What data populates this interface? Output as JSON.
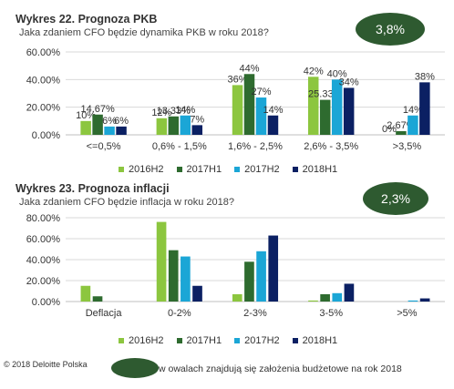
{
  "colors": {
    "2016H2": "#8cc63f",
    "2017H1": "#2e6b2f",
    "2017H2": "#1ba6d6",
    "2018H1": "#0b2063",
    "badge": "#2e5a30"
  },
  "legend": [
    "2016H2",
    "2017H1",
    "2017H2",
    "2018H1"
  ],
  "chart1_text": {
    "title": "Wykres 22. Prognoza PKB",
    "subtitle": "Jaka zdaniem CFO będzie dynamika PKB w roku 2018?",
    "badge": "3,8%"
  },
  "chart2_text": {
    "title": "Wykres 23. Prognoza inflacji",
    "subtitle": "Jaka zdaniem CFO będzie inflacja w roku 2018?",
    "badge": "2,3%"
  },
  "footer": {
    "copyright": "© 2018 Deloitte Polska",
    "note": "w owalach znajdują się założenia budżetowe na rok 2018"
  },
  "chart_data": [
    {
      "type": "bar",
      "title": "Wykres 22. Prognoza PKB",
      "subtitle": "Jaka zdaniem CFO będzie dynamika PKB w roku 2018?",
      "categories": [
        "<=0,5%",
        "0,6% - 1,5%",
        "1,6% - 2,5%",
        "2,6% - 3,5%",
        ">3,5%"
      ],
      "series": [
        {
          "name": "2016H2",
          "values": [
            10,
            12,
            36,
            42,
            0
          ]
        },
        {
          "name": "2017H1",
          "values": [
            14.67,
            13.33,
            44,
            25.33,
            2.67
          ]
        },
        {
          "name": "2017H2",
          "values": [
            6,
            14,
            27,
            40,
            14
          ]
        },
        {
          "name": "2018H1",
          "values": [
            6,
            7,
            14,
            34,
            38
          ]
        }
      ],
      "data_labels": [
        [
          "10%",
          "12%",
          "36%",
          "42%",
          "0%"
        ],
        [
          "14.67%",
          "13.33%",
          "44%",
          "25.33%",
          "2.67%"
        ],
        [
          "6%",
          "14%",
          "27%",
          "40%",
          "14%"
        ],
        [
          "6%",
          "7%",
          "14%",
          "34%",
          "38%"
        ]
      ],
      "yticks": [
        "0.00%",
        "20.00%",
        "40.00%",
        "60.00%"
      ],
      "ylim": [
        0,
        60
      ],
      "grid": true,
      "legend_position": "bottom"
    },
    {
      "type": "bar",
      "title": "Wykres 23. Prognoza inflacji",
      "subtitle": "Jaka zdaniem CFO będzie inflacja w roku 2018?",
      "categories": [
        "Deflacja",
        "0-2%",
        "2-3%",
        "3-5%",
        ">5%"
      ],
      "series": [
        {
          "name": "2016H2",
          "values": [
            15,
            76,
            7,
            1,
            0
          ]
        },
        {
          "name": "2017H1",
          "values": [
            5,
            49,
            38,
            7,
            0
          ]
        },
        {
          "name": "2017H2",
          "values": [
            0,
            43,
            48,
            8,
            1
          ]
        },
        {
          "name": "2018H1",
          "values": [
            0,
            15,
            63,
            17,
            3
          ]
        }
      ],
      "yticks": [
        "0.00%",
        "20.00%",
        "40.00%",
        "60.00%",
        "80.00%"
      ],
      "ylim": [
        0,
        80
      ],
      "grid": true,
      "legend_position": "bottom"
    }
  ]
}
